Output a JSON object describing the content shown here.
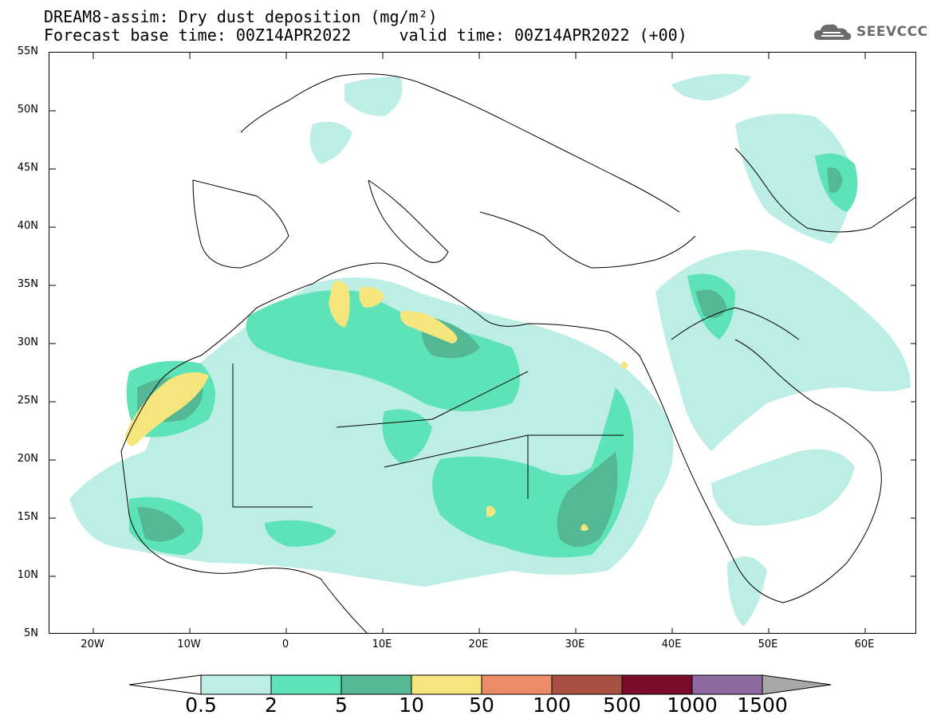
{
  "title_line1": "DREAM8-assim: Dry dust deposition (mg/m²)",
  "title_line2": "Forecast base time: 00Z14APR2022     valid time: 00Z14APR2022 (+00)",
  "logo": {
    "text": "SEEVCCC",
    "icon": "cloud-icon"
  },
  "map": {
    "lon_range": [
      -25,
      65
    ],
    "lat_range": [
      5,
      55
    ],
    "lat_ticks": [
      "55N",
      "50N",
      "45N",
      "40N",
      "35N",
      "30N",
      "25N",
      "20N",
      "15N",
      "10N",
      "5N"
    ],
    "lon_ticks": [
      "20W",
      "10W",
      "0",
      "10E",
      "20E",
      "30E",
      "40E",
      "50E",
      "60E"
    ]
  },
  "colorbar": {
    "labels": [
      "0.5",
      "2",
      "5",
      "10",
      "50",
      "100",
      "500",
      "1000",
      "1500"
    ],
    "colors": [
      "#ffffff",
      "#bdeee6",
      "#5ee3b8",
      "#55b894",
      "#f4e67d",
      "#ea8c67",
      "#a85042",
      "#7a0a2a",
      "#8e6aa0",
      "#a8a8a8"
    ]
  }
}
